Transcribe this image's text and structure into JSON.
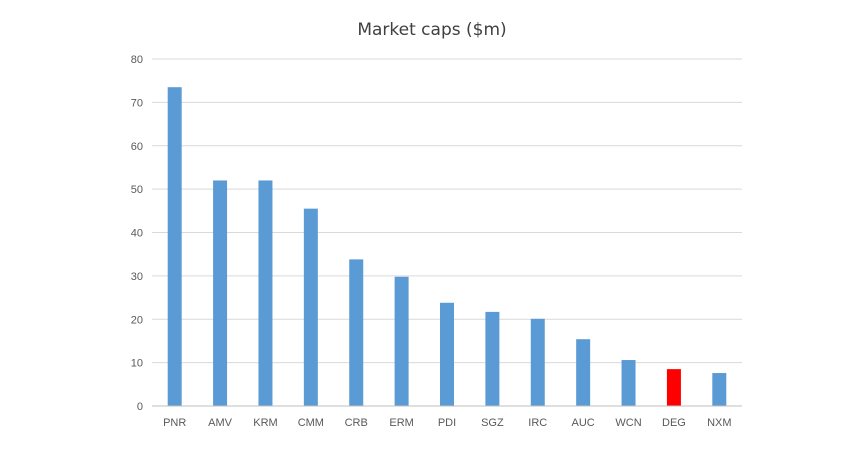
{
  "chart_data": {
    "type": "bar",
    "title": "Market caps ($m)",
    "xlabel": "",
    "ylabel": "",
    "categories": [
      "PNR",
      "AMV",
      "KRM",
      "CMM",
      "CRB",
      "ERM",
      "PDI",
      "SGZ",
      "IRC",
      "AUC",
      "WCN",
      "DEG",
      "NXM"
    ],
    "values": [
      73.5,
      52,
      52,
      45.5,
      33.8,
      29.8,
      23.8,
      21.7,
      20.1,
      15.4,
      10.6,
      8.5,
      7.6
    ],
    "ylim": [
      0,
      80
    ],
    "yticks": [
      0,
      10,
      20,
      30,
      40,
      50,
      60,
      70,
      80
    ],
    "grid": true,
    "legend": "none",
    "colors": {
      "bar": "#5B9BD5",
      "highlight": "#FF0000",
      "highlight_category": "DEG",
      "grid": "#d9d9d9",
      "axis": "#bfbfbf"
    }
  }
}
